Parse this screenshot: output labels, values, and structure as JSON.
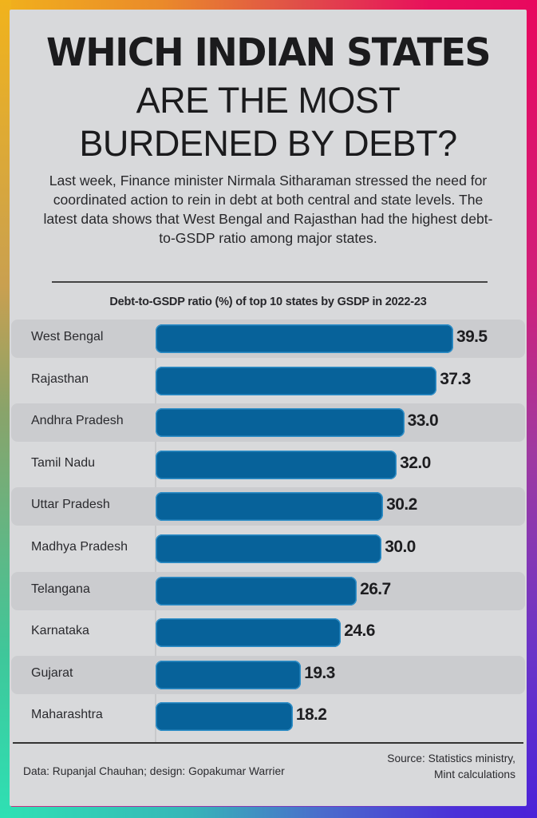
{
  "header": {
    "title_line1": "WHICH INDIAN STATES",
    "title_line2": "ARE THE MOST",
    "title_line3": "BURDENED BY DEBT?"
  },
  "intro": "Last week, Finance minister Nirmala Sitharaman stressed the need for coordinated action to rein in debt at both central and state levels. The latest data shows that West Bengal and Rajasthan had the highest debt-to-GSDP ratio among major states.",
  "chart": {
    "subtitle": "Debt-to-GSDP ratio (%) of top 10 states by GSDP in 2022-23",
    "rows": [
      {
        "label": "West Bengal",
        "value": "39.5"
      },
      {
        "label": "Rajasthan",
        "value": "37.3"
      },
      {
        "label": "Andhra Pradesh",
        "value": "33.0"
      },
      {
        "label": "Tamil Nadu",
        "value": "32.0"
      },
      {
        "label": "Uttar Pradesh",
        "value": "30.2"
      },
      {
        "label": "Madhya Pradesh",
        "value": "30.0"
      },
      {
        "label": "Telangana",
        "value": "26.7"
      },
      {
        "label": "Karnataka",
        "value": "24.6"
      },
      {
        "label": "Gujarat",
        "value": "19.3"
      },
      {
        "label": "Maharashtra",
        "value": "18.2"
      }
    ],
    "bar_color": "#07629a"
  },
  "footer": {
    "credit": "Data: Rupanjal Chauhan; design: Gopakumar Warrier",
    "source_line1": "Source: Statistics ministry,",
    "source_line2": "Mint calculations"
  },
  "chart_data": {
    "type": "bar",
    "orientation": "horizontal",
    "title": "Which Indian states are the most burdened by debt?",
    "subtitle": "Debt-to-GSDP ratio (%) of top 10 states by GSDP in 2022-23",
    "categories": [
      "West Bengal",
      "Rajasthan",
      "Andhra Pradesh",
      "Tamil Nadu",
      "Uttar Pradesh",
      "Madhya Pradesh",
      "Telangana",
      "Karnataka",
      "Gujarat",
      "Maharashtra"
    ],
    "values": [
      39.5,
      37.3,
      33.0,
      32.0,
      30.2,
      30.0,
      26.7,
      24.6,
      19.3,
      18.2
    ],
    "xlabel": "",
    "ylabel": "Debt-to-GSDP ratio (%)",
    "data_labels": true,
    "grid": false,
    "legend": null,
    "source": "Source: Statistics ministry, Mint calculations",
    "credit": "Data: Rupanjal Chauhan; design: Gopakumar Warrier"
  }
}
